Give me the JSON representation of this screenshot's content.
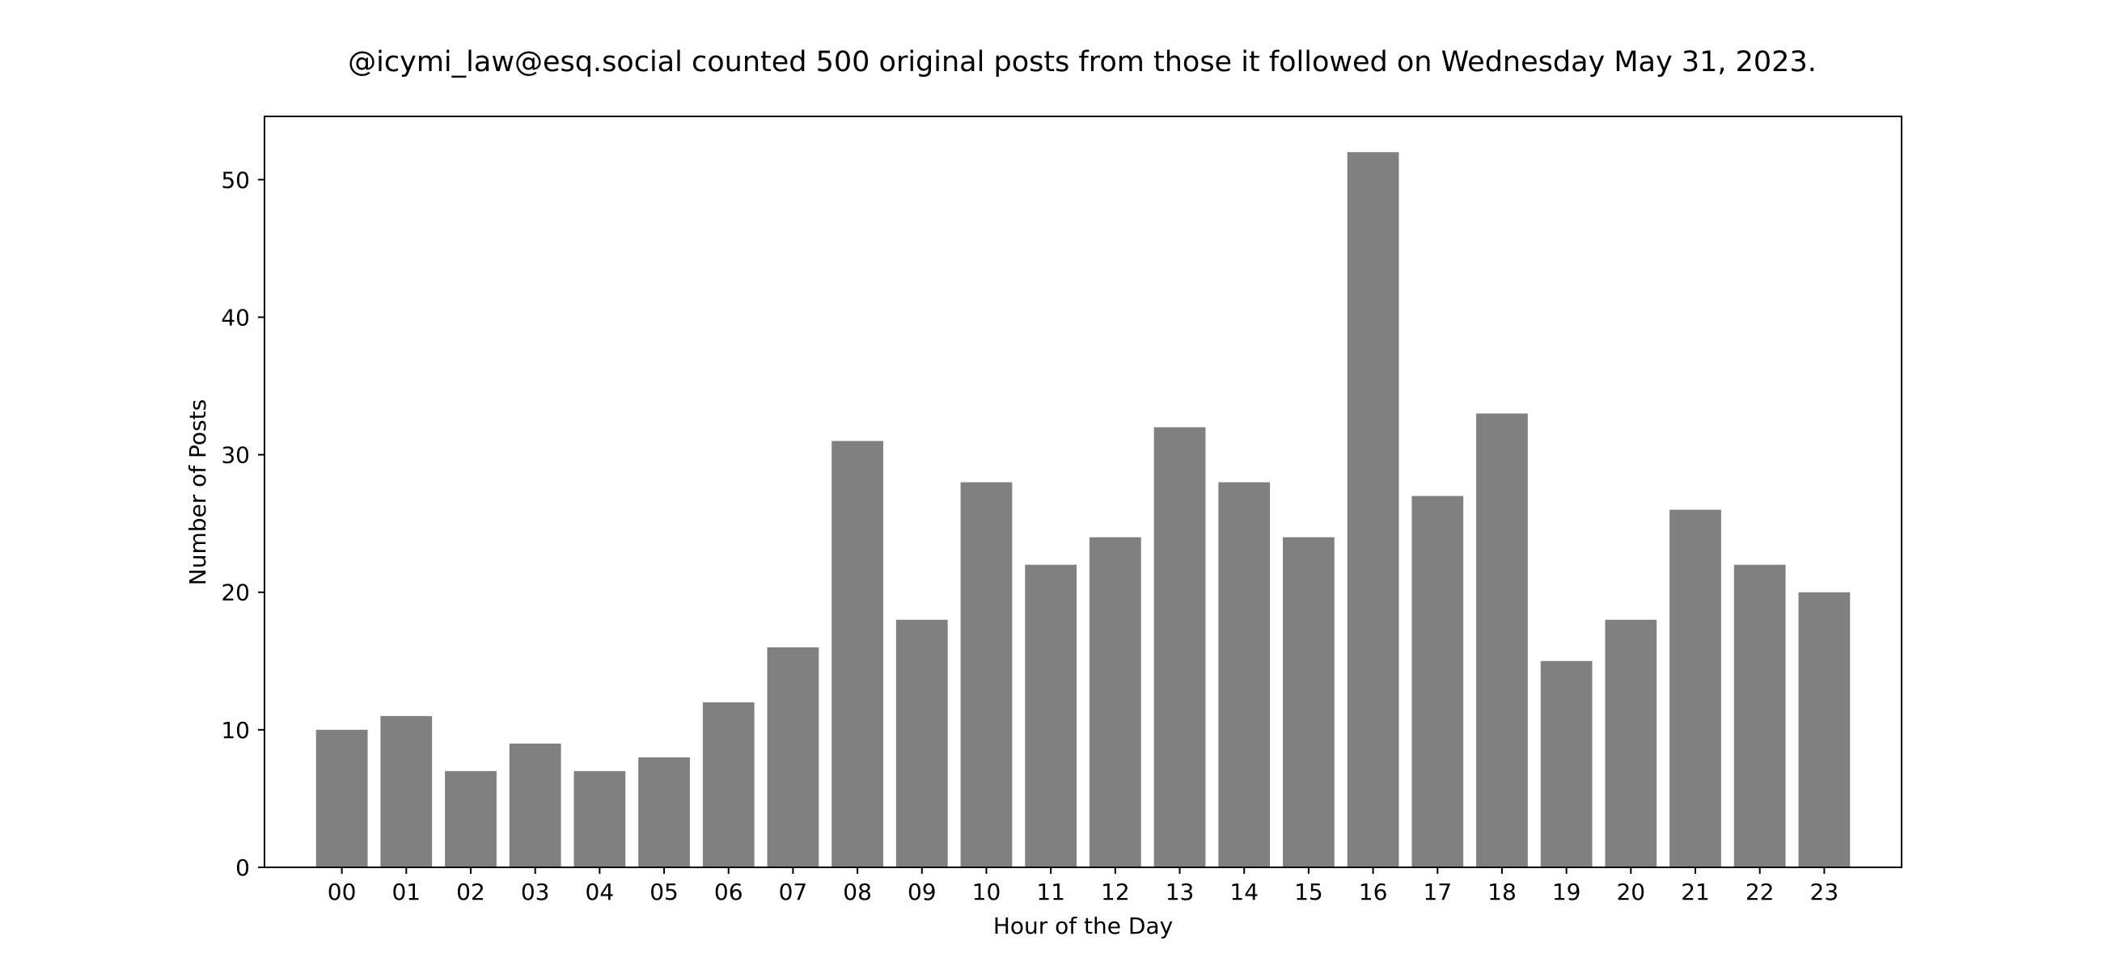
{
  "chart_data": {
    "type": "bar",
    "title": "@icymi_law@esq.social counted 500 original posts from those it followed on Wednesday May 31, 2023.",
    "xlabel": "Hour of the Day",
    "ylabel": "Number of Posts",
    "categories": [
      "00",
      "01",
      "02",
      "03",
      "04",
      "05",
      "06",
      "07",
      "08",
      "09",
      "10",
      "11",
      "12",
      "13",
      "14",
      "15",
      "16",
      "17",
      "18",
      "19",
      "20",
      "21",
      "22",
      "23"
    ],
    "values": [
      10,
      11,
      7,
      9,
      7,
      8,
      12,
      16,
      31,
      18,
      28,
      22,
      24,
      32,
      28,
      24,
      52,
      27,
      33,
      15,
      18,
      26,
      22,
      20
    ],
    "ylim": [
      0,
      54.6
    ],
    "yticks": [
      0,
      10,
      20,
      30,
      40,
      50
    ],
    "grid": false,
    "bar_color": "#808080"
  }
}
